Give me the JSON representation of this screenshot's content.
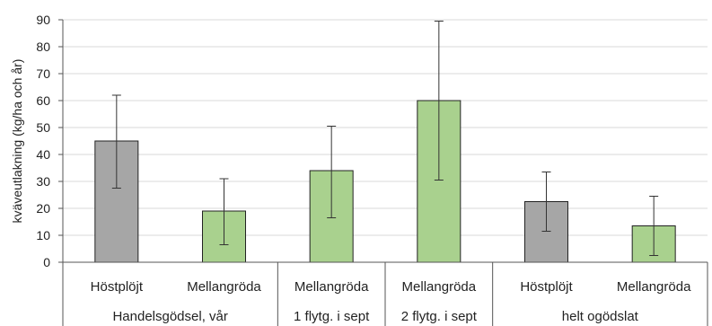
{
  "chart_data": {
    "type": "bar",
    "title": "",
    "ylabel": "kväveutlakning (kg/ha och år)",
    "xlabel": "",
    "ylim": [
      0,
      90
    ],
    "yticks": [
      0,
      10,
      20,
      30,
      40,
      50,
      60,
      70,
      80,
      90
    ],
    "grid": true,
    "categories": [
      "Höstplöjt",
      "Mellangröda",
      "Mellangröda",
      "Mellangröda",
      "Höstplöjt",
      "Mellangröda"
    ],
    "groups": [
      {
        "label": "Handelsgödsel, vår",
        "span": 2
      },
      {
        "label": "1 flytg. i sept",
        "span": 1
      },
      {
        "label": "2 flytg. i sept",
        "span": 1
      },
      {
        "label": "helt ogödslat",
        "span": 2
      }
    ],
    "values": [
      45,
      19,
      34,
      60,
      22.5,
      13.5
    ],
    "error_low": [
      27.5,
      6.5,
      16.5,
      30.5,
      11.5,
      2.5
    ],
    "error_high": [
      62,
      31,
      50.5,
      89.5,
      33.5,
      24.5
    ],
    "bar_colors": [
      "#a6a6a6",
      "#a9d18e",
      "#a9d18e",
      "#a9d18e",
      "#a6a6a6",
      "#a9d18e"
    ],
    "bar_stroke": "#222222",
    "grid_color": "#d9d9d9"
  }
}
